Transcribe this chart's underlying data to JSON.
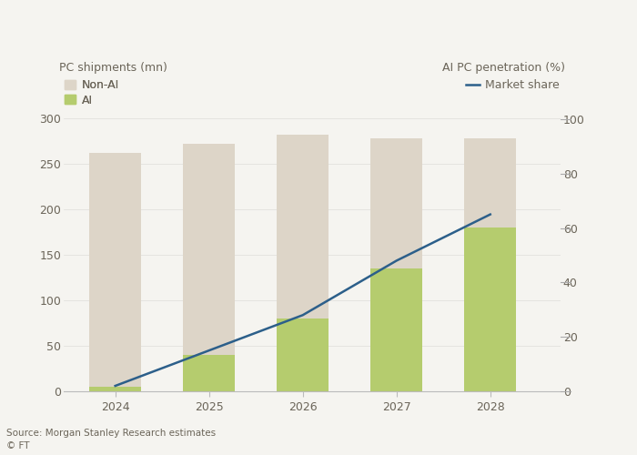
{
  "years": [
    2024,
    2025,
    2026,
    2027,
    2028
  ],
  "ai_values": [
    5,
    40,
    80,
    135,
    180
  ],
  "total_values": [
    262,
    272,
    282,
    278,
    278
  ],
  "market_share": [
    2,
    15,
    28,
    48,
    65
  ],
  "nonai_color": "#ddd5c8",
  "ai_color": "#b5cc6e",
  "line_color": "#2c5f8a",
  "background_color": "#f5f4f0",
  "text_color": "#6b6559",
  "left_ylabel": "PC shipments (mn)",
  "right_ylabel": "AI PC penetration (%)",
  "left_ylim": [
    0,
    320
  ],
  "right_ylim": [
    0,
    107
  ],
  "left_yticks": [
    0,
    50,
    100,
    150,
    200,
    250,
    300
  ],
  "right_yticks": [
    0,
    20,
    40,
    60,
    80,
    100
  ],
  "source_text": "Source: Morgan Stanley Research estimates\n© FT",
  "nonai_label": "Non-AI",
  "ai_label": "AI",
  "line_label": "Market share",
  "bar_width": 0.55,
  "xlim": [
    2023.45,
    2028.75
  ]
}
